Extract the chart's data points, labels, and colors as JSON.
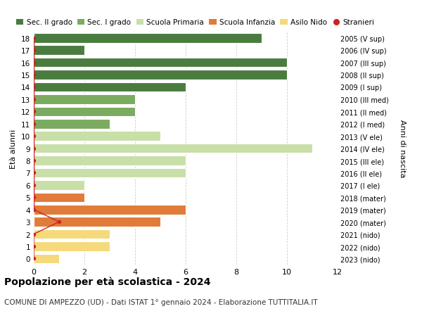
{
  "ages": [
    18,
    17,
    16,
    15,
    14,
    13,
    12,
    11,
    10,
    9,
    8,
    7,
    6,
    5,
    4,
    3,
    2,
    1,
    0
  ],
  "right_labels": [
    "2005 (V sup)",
    "2006 (IV sup)",
    "2007 (III sup)",
    "2008 (II sup)",
    "2009 (I sup)",
    "2010 (III med)",
    "2011 (II med)",
    "2012 (I med)",
    "2013 (V ele)",
    "2014 (IV ele)",
    "2015 (III ele)",
    "2016 (II ele)",
    "2017 (I ele)",
    "2018 (mater)",
    "2019 (mater)",
    "2020 (mater)",
    "2021 (nido)",
    "2022 (nido)",
    "2023 (nido)"
  ],
  "bar_values": [
    9,
    2,
    10,
    10,
    6,
    4,
    4,
    3,
    5,
    11,
    6,
    6,
    2,
    2,
    6,
    5,
    3,
    3,
    1
  ],
  "bar_colors": [
    "#4a7c3f",
    "#4a7c3f",
    "#4a7c3f",
    "#4a7c3f",
    "#4a7c3f",
    "#7aab5e",
    "#7aab5e",
    "#7aab5e",
    "#c8dfa8",
    "#c8dfa8",
    "#c8dfa8",
    "#c8dfa8",
    "#c8dfa8",
    "#e07b39",
    "#e07b39",
    "#e07b39",
    "#f5d97a",
    "#f5d97a",
    "#f5d97a"
  ],
  "stranieri_dots_age": [
    18,
    17,
    16,
    15,
    14,
    13,
    12,
    11,
    10,
    9,
    8,
    7,
    6,
    5,
    4,
    3,
    2,
    1,
    0
  ],
  "stranieri_dots_x": [
    0,
    0,
    0,
    0,
    0,
    0,
    0,
    0,
    0,
    0,
    0,
    0,
    0,
    0,
    0,
    1,
    0,
    0,
    0
  ],
  "legend_labels": [
    "Sec. II grado",
    "Sec. I grado",
    "Scuola Primaria",
    "Scuola Infanzia",
    "Asilo Nido",
    "Stranieri"
  ],
  "legend_colors": [
    "#4a7c3f",
    "#7aab5e",
    "#c8dfa8",
    "#e07b39",
    "#f5d97a",
    "#cc2222"
  ],
  "title": "Popolazione per età scolastica - 2024",
  "subtitle": "COMUNE DI AMPEZZO (UD) - Dati ISTAT 1° gennaio 2024 - Elaborazione TUTTITALIA.IT",
  "ylabel": "Età alunni",
  "right_ylabel": "Anni di nascita",
  "xlim": [
    0,
    12
  ],
  "xticks": [
    0,
    2,
    4,
    6,
    8,
    10,
    12
  ],
  "background_color": "#ffffff",
  "grid_color": "#d0d0d0"
}
